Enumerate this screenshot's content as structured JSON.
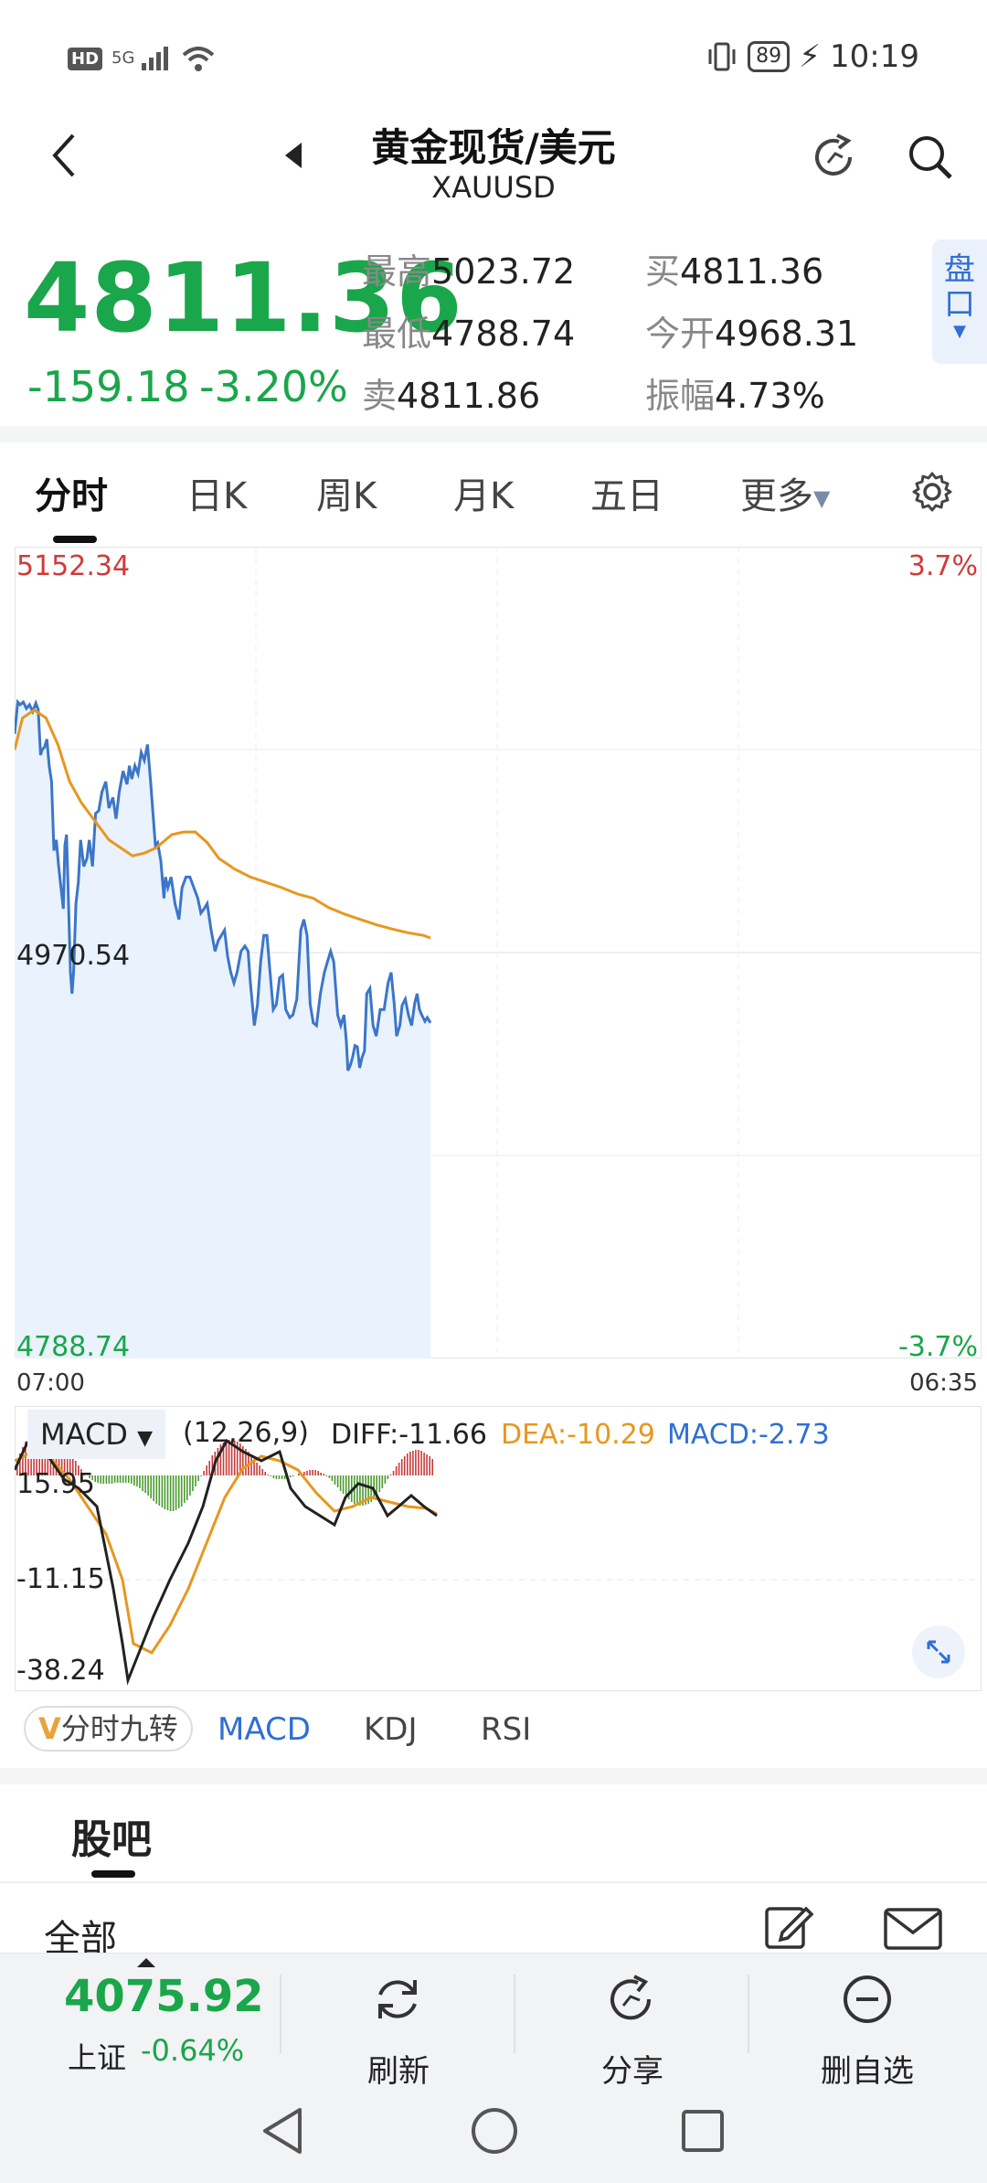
{
  "status_bar": {
    "time": "10:19",
    "battery": "89",
    "network": "5G",
    "hd": "HD"
  },
  "header": {
    "title": "黄金现货/美元",
    "subtitle": "XAUUSD"
  },
  "quote": {
    "price": "4811.36",
    "change": "-159.18",
    "change_pct": "-3.20%",
    "high_label": "最高",
    "high": "5023.72",
    "low_label": "最低",
    "low": "4788.74",
    "sell_label": "卖",
    "sell": "4811.86",
    "buy_label": "买",
    "buy": "4811.36",
    "open_label": "今开",
    "open": "4968.31",
    "amp_label": "振幅",
    "amp": "4.73%",
    "pankou": "盘口"
  },
  "tabs": [
    "分时",
    "日K",
    "周K",
    "月K",
    "五日",
    "更多"
  ],
  "chart": {
    "y_max_label": "5152.34",
    "y_max_pct": "3.7%",
    "y_mid_label": "4970.54",
    "y_min_label": "4788.74",
    "y_min_pct": "-3.7%",
    "x_start": "07:00",
    "x_end": "06:35"
  },
  "macd": {
    "label": "MACD",
    "params": "(12,26,9)",
    "diff": "DIFF:-11.66",
    "dea": "DEA:-10.29",
    "macd": "MACD:-2.73",
    "y_top": "15.95",
    "y_mid": "-11.15",
    "y_bot": "-38.24"
  },
  "indicator_tabs": {
    "nine": "分时九转",
    "v": "V",
    "items": [
      "MACD",
      "KDJ",
      "RSI"
    ]
  },
  "guba": {
    "title": "股吧",
    "filter": "全部"
  },
  "bottom": {
    "index_value": "4075.92",
    "index_name": "上证",
    "index_pct": "-0.64%",
    "refresh": "刷新",
    "share": "分享",
    "remove": "删自选"
  },
  "colors": {
    "down": "#1aa64a",
    "up": "#d13a3a",
    "accent": "#2f6fd6",
    "avg": "#e8971e"
  }
}
